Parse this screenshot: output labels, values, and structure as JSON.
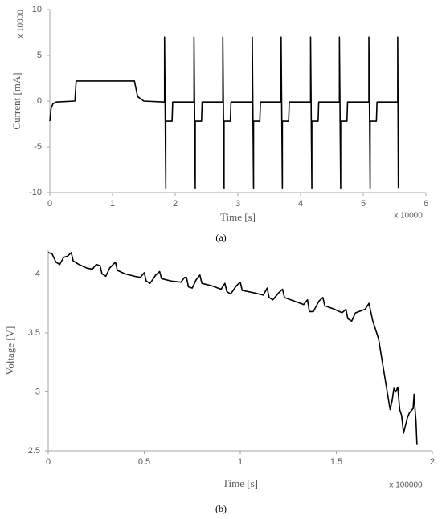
{
  "chart_data": [
    {
      "type": "line",
      "caption": "(a)",
      "x_label": "Time [s]",
      "y_label": "Current [mA]",
      "x_multiplier": "x 10000",
      "y_multiplier": "x 10000",
      "color": "#000000",
      "xlim": [
        0,
        6
      ],
      "xticks": [
        0,
        1,
        2,
        3,
        4,
        5,
        6
      ],
      "ylim": [
        -10,
        10
      ],
      "yticks": [
        -10,
        -5,
        0,
        5,
        10
      ],
      "x": [
        0,
        0.02,
        0.05,
        0.1,
        0.4,
        0.42,
        1.35,
        1.4,
        1.5,
        1.83,
        1.83,
        1.85,
        1.85,
        1.95,
        1.96,
        2.3,
        2.3,
        2.32,
        2.32,
        2.42,
        2.43,
        2.76,
        2.76,
        2.78,
        2.78,
        2.88,
        2.89,
        3.23,
        3.23,
        3.25,
        3.25,
        3.35,
        3.36,
        3.69,
        3.69,
        3.71,
        3.71,
        3.81,
        3.82,
        4.16,
        4.16,
        4.18,
        4.18,
        4.28,
        4.29,
        4.62,
        4.62,
        4.64,
        4.64,
        4.74,
        4.75,
        5.09,
        5.09,
        5.11,
        5.11,
        5.21,
        5.22,
        5.55,
        5.55,
        5.56
      ],
      "values": [
        -2.2,
        -0.8,
        -0.3,
        -0.1,
        0,
        2.2,
        2.2,
        0.5,
        0,
        -0.1,
        7,
        -9.5,
        -2.2,
        -2.2,
        -0.1,
        -0.1,
        7,
        -9.5,
        -2.2,
        -2.2,
        -0.1,
        -0.1,
        7,
        -9.5,
        -2.2,
        -2.2,
        -0.1,
        -0.1,
        7,
        -9.5,
        -2.2,
        -2.2,
        -0.1,
        -0.1,
        7,
        -9.5,
        -2.2,
        -2.2,
        -0.1,
        -0.1,
        7,
        -9.5,
        -2.2,
        -2.2,
        -0.1,
        -0.1,
        7,
        -9.5,
        -2.2,
        -2.2,
        -0.1,
        -0.1,
        7,
        -9.5,
        -2.2,
        -2.2,
        -0.1,
        -0.1,
        7,
        -9.5
      ]
    },
    {
      "type": "line",
      "caption": "(b)",
      "x_label": "Time [s]",
      "y_label": "Voltage [V]",
      "x_multiplier": "x 100000",
      "color": "#000000",
      "xlim": [
        0,
        2
      ],
      "xticks": [
        0,
        0.5,
        1,
        1.5,
        2
      ],
      "ylim": [
        2.5,
        4.2
      ],
      "yticks": [
        2.5,
        3,
        3.5,
        4
      ],
      "x": [
        0,
        0.02,
        0.04,
        0.06,
        0.08,
        0.1,
        0.12,
        0.13,
        0.16,
        0.2,
        0.23,
        0.25,
        0.27,
        0.28,
        0.3,
        0.32,
        0.35,
        0.36,
        0.4,
        0.45,
        0.48,
        0.5,
        0.51,
        0.53,
        0.56,
        0.58,
        0.59,
        0.64,
        0.69,
        0.71,
        0.72,
        0.73,
        0.75,
        0.77,
        0.79,
        0.8,
        0.85,
        0.9,
        0.92,
        0.93,
        0.95,
        0.98,
        1.0,
        1.01,
        1.07,
        1.12,
        1.14,
        1.15,
        1.17,
        1.2,
        1.22,
        1.23,
        1.28,
        1.33,
        1.35,
        1.36,
        1.38,
        1.41,
        1.43,
        1.44,
        1.49,
        1.53,
        1.55,
        1.56,
        1.58,
        1.6,
        1.65,
        1.67,
        1.69,
        1.72,
        1.74,
        1.76,
        1.77,
        1.78,
        1.79,
        1.8,
        1.81,
        1.82,
        1.83,
        1.84,
        1.85,
        1.87,
        1.88,
        1.9,
        1.905,
        1.91,
        1.915,
        1.92
      ],
      "values": [
        4.18,
        4.17,
        4.1,
        4.08,
        4.14,
        4.15,
        4.18,
        4.11,
        4.08,
        4.05,
        4.04,
        4.08,
        4.07,
        4.0,
        3.98,
        4.05,
        4.1,
        4.03,
        4.0,
        3.98,
        3.97,
        4.01,
        3.94,
        3.92,
        3.99,
        4.02,
        3.96,
        3.94,
        3.93,
        3.97,
        3.97,
        3.89,
        3.88,
        3.95,
        3.99,
        3.92,
        3.9,
        3.87,
        3.92,
        3.85,
        3.83,
        3.9,
        3.93,
        3.86,
        3.84,
        3.82,
        3.88,
        3.8,
        3.78,
        3.84,
        3.87,
        3.8,
        3.77,
        3.74,
        3.78,
        3.68,
        3.68,
        3.77,
        3.8,
        3.73,
        3.7,
        3.67,
        3.7,
        3.62,
        3.6,
        3.67,
        3.7,
        3.75,
        3.6,
        3.45,
        3.25,
        3.05,
        2.95,
        2.85,
        2.92,
        3.03,
        3.0,
        3.04,
        2.85,
        2.8,
        2.65,
        2.78,
        2.82,
        2.86,
        2.98,
        2.85,
        2.75,
        2.55
      ]
    }
  ]
}
